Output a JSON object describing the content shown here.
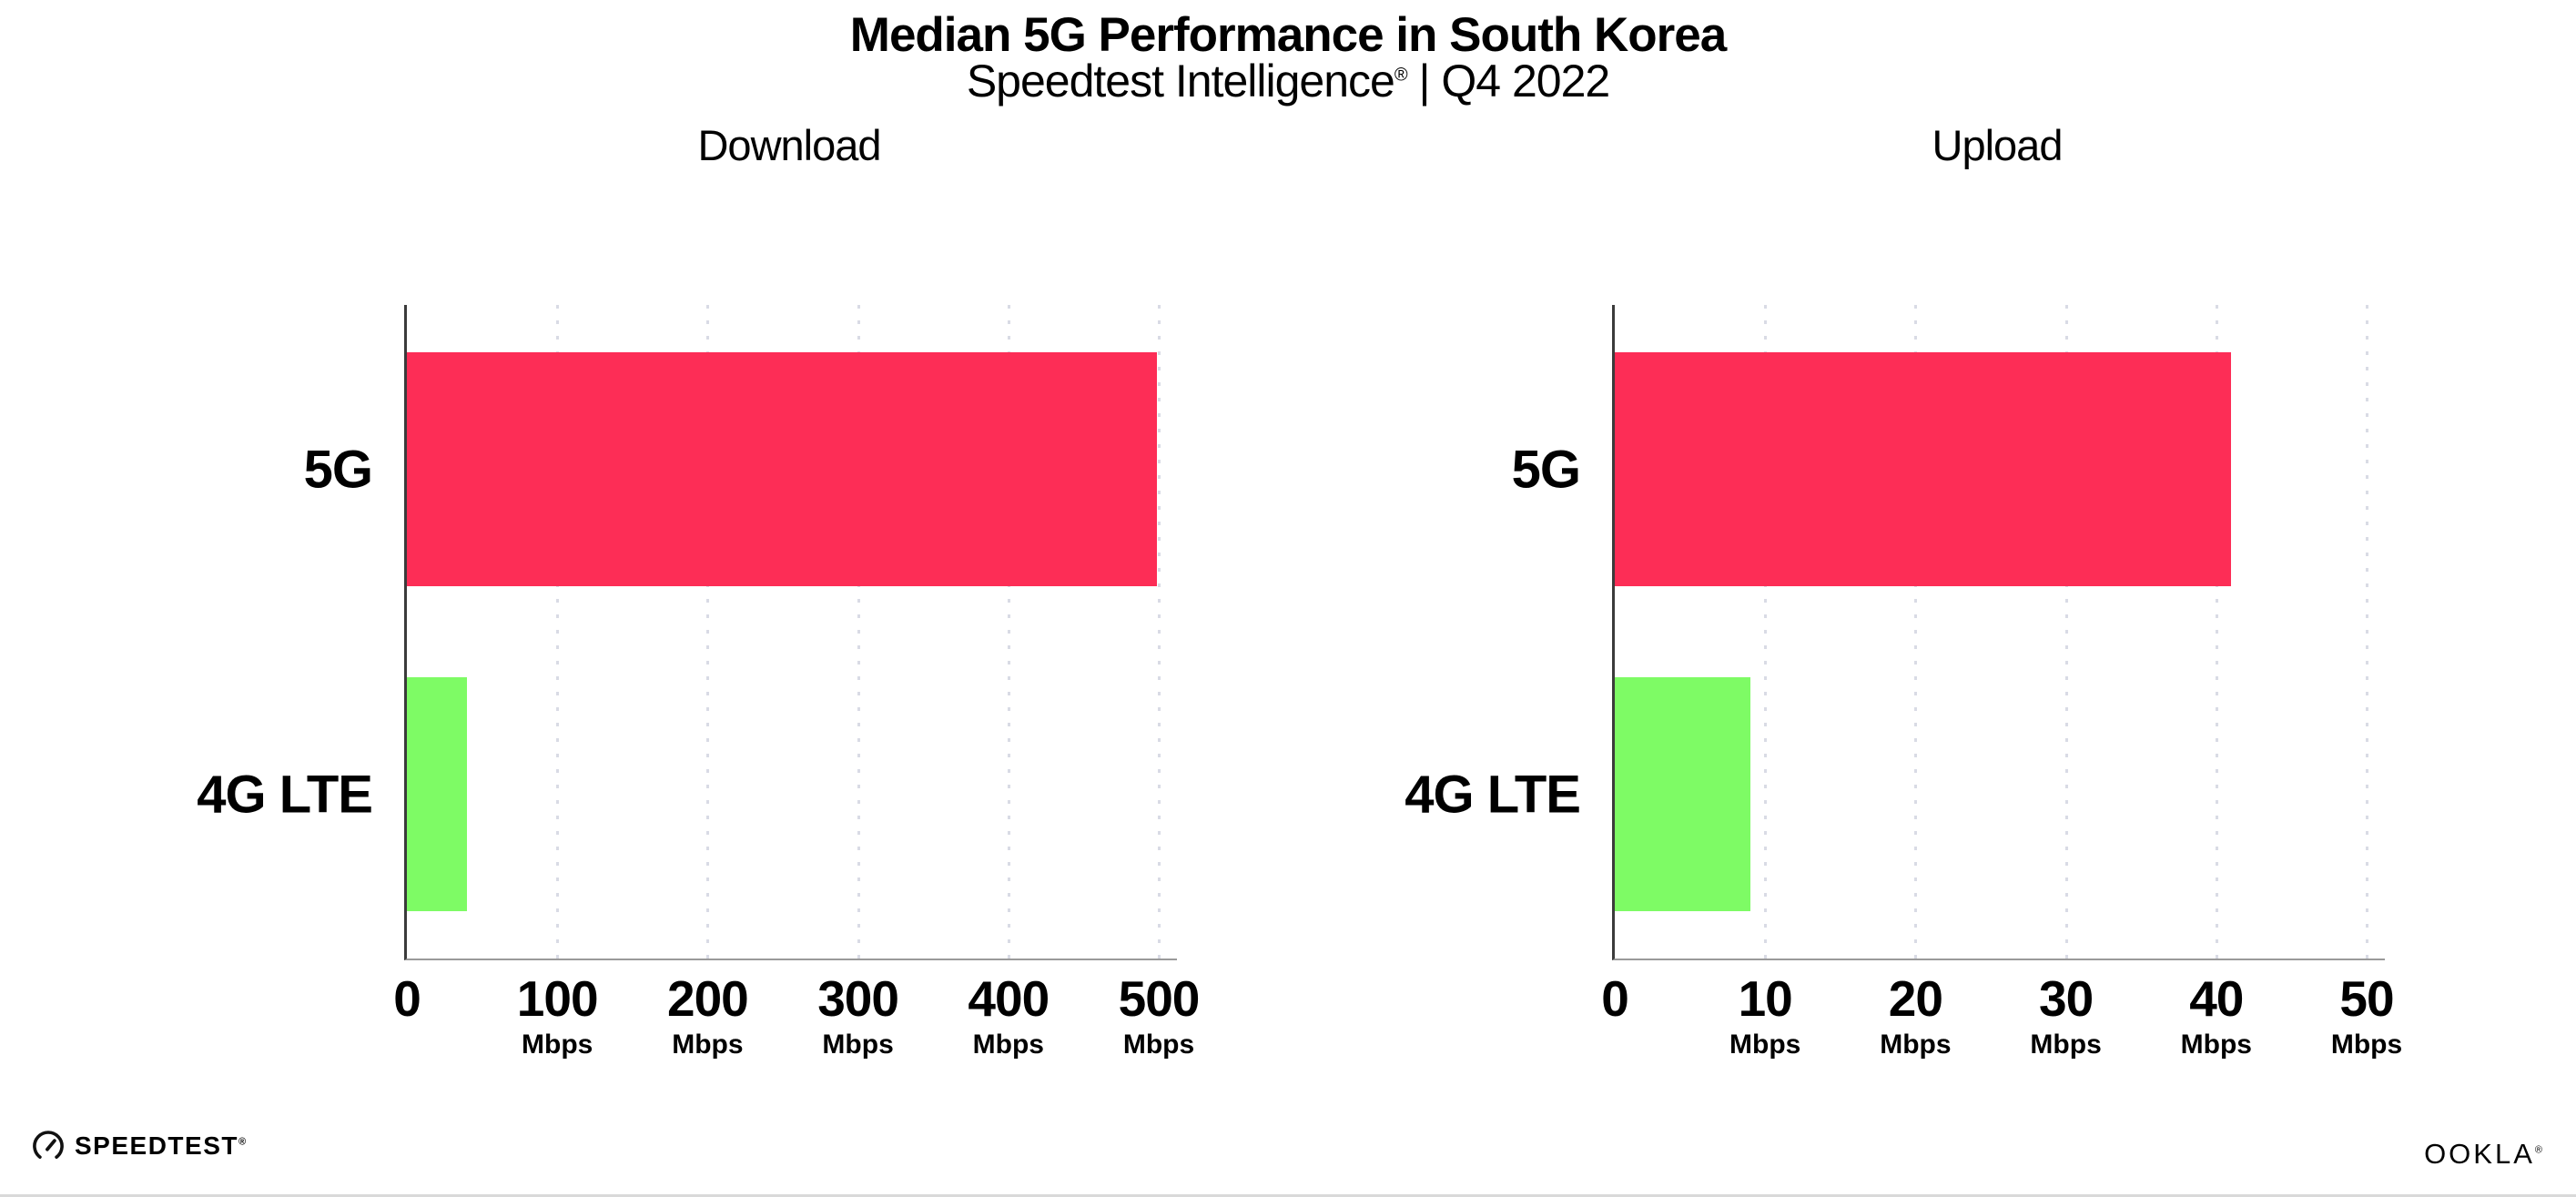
{
  "header": {
    "title": "Median 5G Performance in South Korea",
    "subtitle_brand": "Speedtest Intelligence",
    "subtitle_reg": "®",
    "subtitle_rest": " | Q4 2022"
  },
  "colors": {
    "bar_5g": "#FD2D56",
    "bar_4g_lte": "#7EFB65",
    "gridline": "#D9DBE5",
    "y_axis_line": "#3B3B3B",
    "x_axis_line": "#9A9A9A"
  },
  "chart_data": [
    {
      "type": "bar",
      "orientation": "horizontal",
      "title": "Download",
      "categories": [
        "5G",
        "4G LTE"
      ],
      "values": [
        499,
        40
      ],
      "unit": "Mbps",
      "xlim": [
        0,
        500
      ],
      "xticks": [
        0,
        100,
        200,
        300,
        400,
        500
      ],
      "xtick_unit": "Mbps",
      "bar_colors": [
        "#FD2D56",
        "#7EFB65"
      ],
      "grid": "vertical-dotted",
      "legend": "none"
    },
    {
      "type": "bar",
      "orientation": "horizontal",
      "title": "Upload",
      "categories": [
        "5G",
        "4G LTE"
      ],
      "values": [
        41,
        9
      ],
      "unit": "Mbps",
      "xlim": [
        0,
        50
      ],
      "xticks": [
        0,
        10,
        20,
        30,
        40,
        50
      ],
      "xtick_unit": "Mbps",
      "bar_colors": [
        "#FD2D56",
        "#7EFB65"
      ],
      "grid": "vertical-dotted",
      "legend": "none"
    }
  ],
  "footer": {
    "speedtest_label": "SPEEDTEST",
    "speedtest_reg": "®",
    "ookla_label": "OOKLA",
    "ookla_reg": "®"
  }
}
